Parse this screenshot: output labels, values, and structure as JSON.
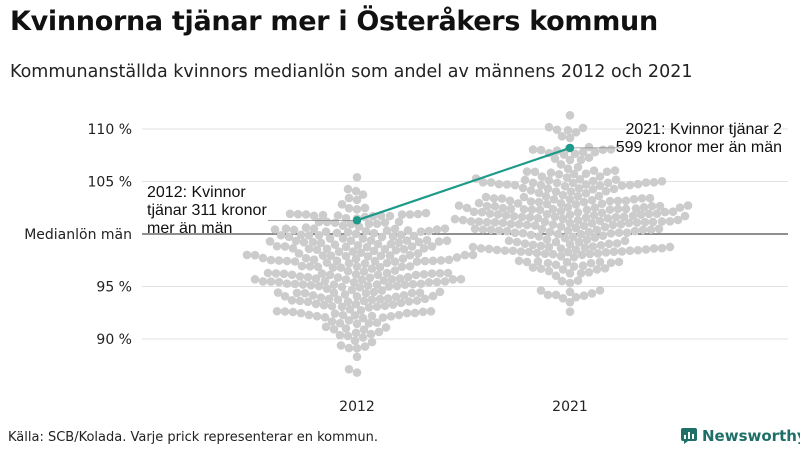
{
  "title": "Kvinnorna tjänar mer i Österåkers kommun",
  "subtitle": "Kommunanställda kvinnors medianlön som andel av männens 2012 och 2021",
  "footer": "Källa: SCB/Kolada. Varje prick representerar en kommun.",
  "brand": {
    "name": "Newsworthy",
    "icon": "newsworthy-logo-icon",
    "color": "#1e6f67"
  },
  "annotations": {
    "a2012": "2012: Kvinnor tjänar 311 kronor mer än män",
    "a2021": "2021: Kvinnor tjänar 2 599 kronor mer än män"
  },
  "chart_data": {
    "type": "scatter",
    "subtype": "beeswarm",
    "categories": [
      "2012",
      "2021"
    ],
    "y_tick_labels": [
      "90 %",
      "95 %",
      "Medianlön män",
      "105 %",
      "110 %"
    ],
    "y_ticks": [
      90,
      95,
      100,
      105,
      110
    ],
    "ylim": [
      86.5,
      112
    ],
    "reference_line": {
      "value": 100,
      "label": "Medianlön män"
    },
    "highlight": {
      "name": "Österåker",
      "values": {
        "2012": 101.3,
        "2021": 108.2
      },
      "color": "#1e9a8a"
    },
    "swarm": {
      "point_color": "#cccccc",
      "2012": {
        "count": 290,
        "median": 96.5,
        "min": 86.8,
        "max": 105.4
      },
      "2021": {
        "count": 290,
        "median": 101.8,
        "min": 92.6,
        "max": 111.3
      }
    },
    "grid": true,
    "legend": "none"
  }
}
